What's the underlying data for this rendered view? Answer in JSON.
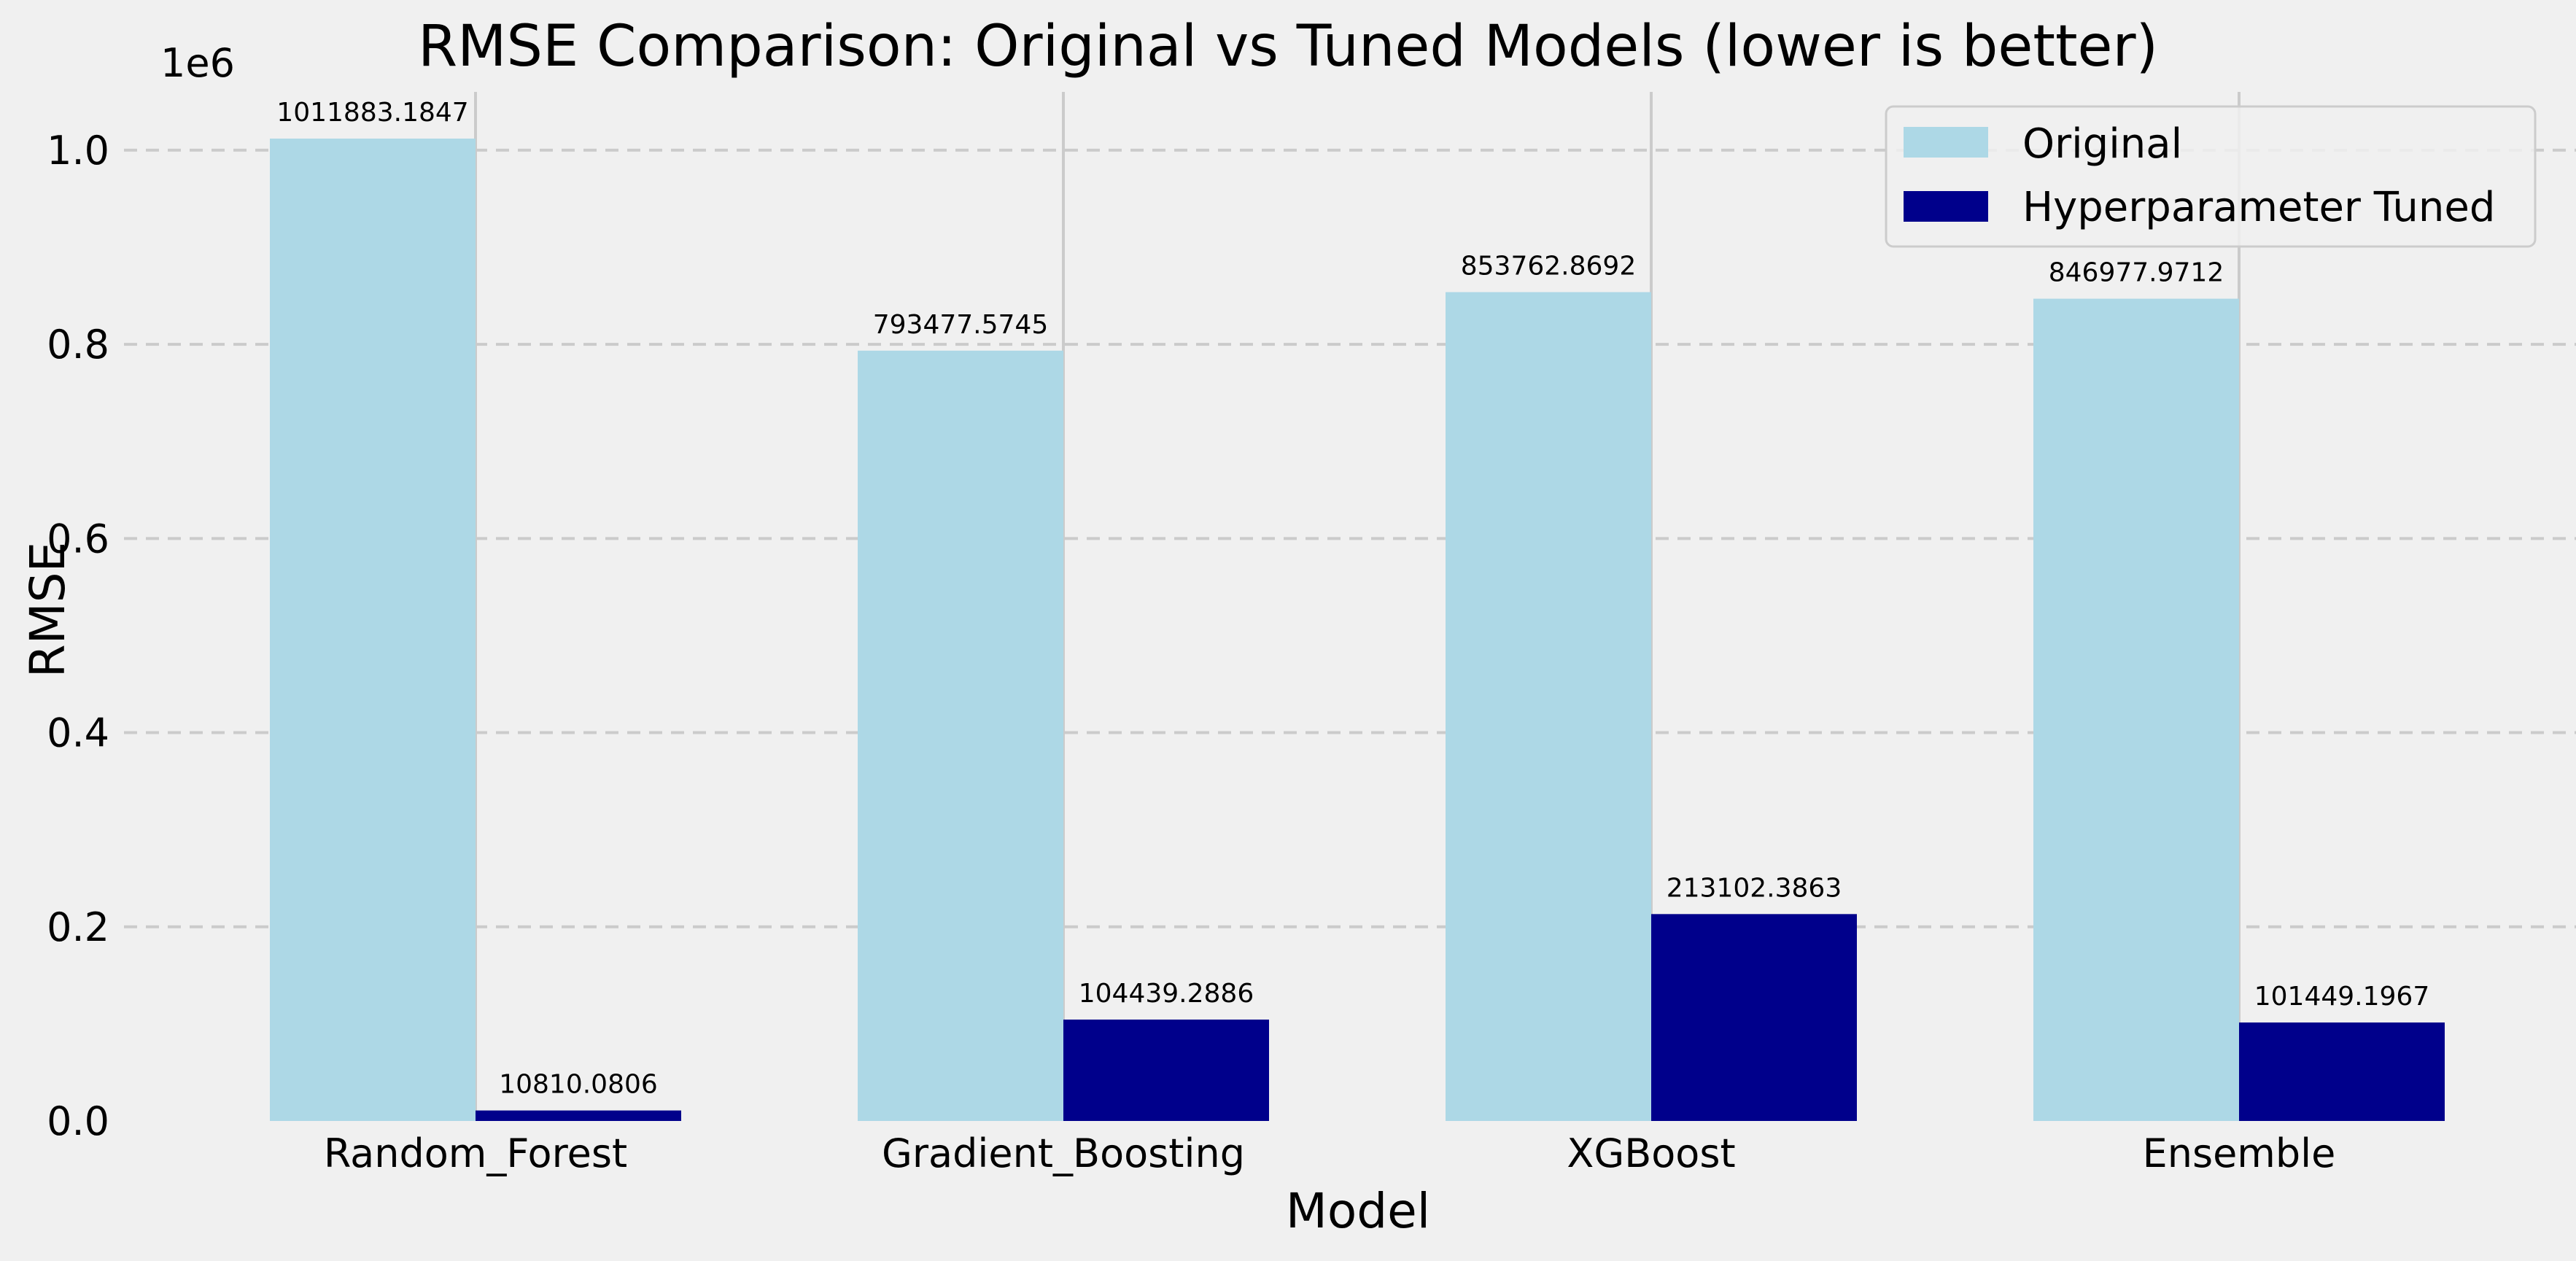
{
  "chart_data": {
    "type": "bar",
    "title": "RMSE Comparison: Original vs Tuned Models (lower is better)",
    "xlabel": "Model",
    "ylabel": "RMSE",
    "y_offset_label": "1e6",
    "categories": [
      "Random_Forest",
      "Gradient_Boosting",
      "XGBoost",
      "Ensemble"
    ],
    "series": [
      {
        "name": "Original",
        "color": "#add8e6",
        "values": [
          1011883.1847,
          793477.5745,
          853762.8692,
          846977.9712
        ],
        "labels": [
          "1011883.1847",
          "793477.5745",
          "853762.8692",
          "846977.9712"
        ]
      },
      {
        "name": "Hyperparameter Tuned",
        "color": "#00008b",
        "values": [
          10810.0806,
          104439.2886,
          213102.3863,
          101449.1967
        ],
        "labels": [
          "10810.0806",
          "104439.2886",
          "213102.3863",
          "101449.1967"
        ]
      }
    ],
    "ylim": [
      0,
      1060000
    ],
    "yticks": [
      0,
      200000,
      400000,
      600000,
      800000,
      1000000
    ],
    "ytick_labels": [
      "0.0",
      "0.2",
      "0.4",
      "0.6",
      "0.8",
      "1.0"
    ],
    "grid": "horizontal dashed",
    "legend_position": "top-right"
  }
}
